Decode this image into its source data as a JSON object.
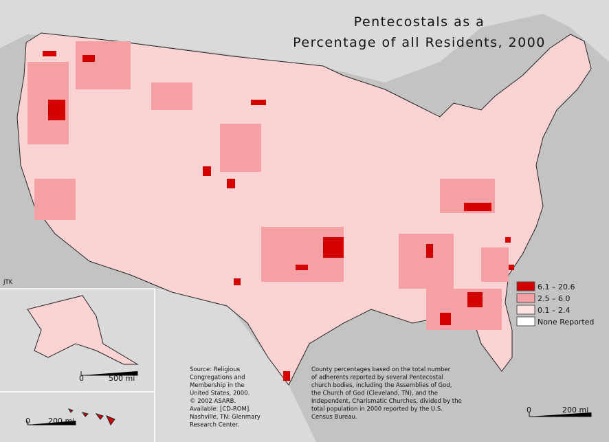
{
  "title": {
    "lines": [
      "Pentecostals as a",
      "Percentage of all Residents, 2000"
    ]
  },
  "legend": {
    "items": [
      {
        "label": "6.1 – 20.6",
        "color": "#d40000"
      },
      {
        "label": "2.5 – 6.0",
        "color": "#f4a0a4"
      },
      {
        "label": "0.1 – 2.4",
        "color": "#fde0e0"
      },
      {
        "label": "None Reported",
        "color": "#ffffff"
      }
    ]
  },
  "source": {
    "lines": [
      "Source:  Religious",
      "Congregations and",
      "Membership in the",
      "United States, 2000.",
      "© 2002 ASARB.",
      "Available: [CD-ROM].",
      "Nashville, TN: Glenmary",
      "Research Center."
    ]
  },
  "note": {
    "lines": [
      "County percentages based on the total number",
      "of adherents reported by several Pentecostal",
      "church bodies, including the Assemblies of God,",
      "the Church of God (Cleveland, TN), and the",
      "Independent, Charismatic Churches, divided by the",
      "total population in 2000 reported by the U.S.",
      "Census Bureau."
    ]
  },
  "scales": {
    "alaska": {
      "zero": "0",
      "length": "500 mi"
    },
    "hawaii": {
      "zero": "0",
      "length": "200 mi"
    },
    "main": {
      "zero": "0",
      "length": "200 mi"
    }
  },
  "credit": "JTK"
}
